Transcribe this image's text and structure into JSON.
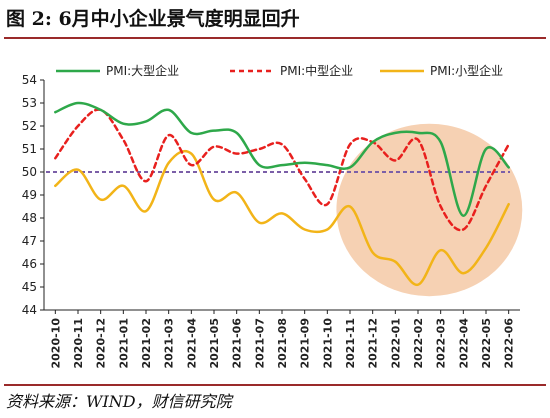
{
  "figure": {
    "title": "图 2:  6月中小企业景气度明显回升",
    "source": "资料来源：WIND，财信研究院"
  },
  "chart_data": {
    "type": "line",
    "title": "",
    "xlabel": "",
    "ylabel": "",
    "ylim": [
      44,
      54
    ],
    "yticks": [
      44,
      45,
      46,
      47,
      48,
      49,
      50,
      51,
      52,
      53,
      54
    ],
    "grid": false,
    "legend_position": "top",
    "x": [
      "2020-10",
      "2020-11",
      "2020-12",
      "2021-01",
      "2021-02",
      "2021-03",
      "2021-04",
      "2021-05",
      "2021-06",
      "2021-07",
      "2021-08",
      "2021-09",
      "2021-10",
      "2021-11",
      "2021-12",
      "2022-01",
      "2022-02",
      "2022-03",
      "2022-04",
      "2022-05",
      "2022-06"
    ],
    "reference_line": {
      "value": 50,
      "color": "#7b5fa8"
    },
    "highlight": {
      "from": "2021-11",
      "to": "2022-06",
      "color": "#f5c9a6"
    },
    "series": [
      {
        "name": "PMI:大型企业",
        "color": "#2ea84a",
        "style": "solid",
        "values": [
          52.6,
          53.0,
          52.7,
          52.1,
          52.2,
          52.7,
          51.7,
          51.8,
          51.7,
          50.3,
          50.3,
          50.4,
          50.3,
          50.2,
          51.3,
          51.7,
          51.7,
          51.3,
          48.1,
          51.0,
          50.2
        ]
      },
      {
        "name": "PMI:中型企业",
        "color": "#e8201e",
        "style": "dashed",
        "values": [
          50.6,
          52.0,
          52.7,
          51.4,
          49.6,
          51.6,
          50.3,
          51.1,
          50.8,
          51.0,
          51.2,
          49.7,
          48.6,
          51.2,
          51.3,
          50.5,
          51.4,
          48.5,
          47.5,
          49.4,
          51.2
        ]
      },
      {
        "name": "PMI:小型企业",
        "color": "#f2b418",
        "style": "solid",
        "values": [
          49.4,
          50.1,
          48.8,
          49.4,
          48.3,
          50.4,
          50.8,
          48.8,
          49.1,
          47.8,
          48.2,
          47.5,
          47.5,
          48.5,
          46.5,
          46.1,
          45.1,
          46.6,
          45.6,
          46.7,
          48.6
        ]
      }
    ]
  }
}
